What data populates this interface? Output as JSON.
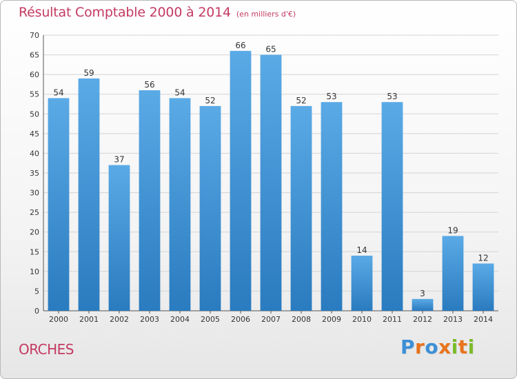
{
  "chart_data": {
    "type": "bar",
    "title": "Résultat Comptable 2000 à 2014",
    "subtitle": "(en milliers d'€)",
    "categories": [
      "2000",
      "2001",
      "2002",
      "2003",
      "2004",
      "2005",
      "2006",
      "2007",
      "2008",
      "2009",
      "2010",
      "2011",
      "2012",
      "2013",
      "2014"
    ],
    "values": [
      54,
      59,
      37,
      56,
      54,
      52,
      66,
      65,
      52,
      53,
      14,
      53,
      3,
      19,
      12
    ],
    "ylim": [
      0,
      70
    ],
    "yticks": [
      0,
      5,
      10,
      15,
      20,
      25,
      30,
      35,
      40,
      45,
      50,
      55,
      60,
      65,
      70
    ],
    "grid": true,
    "bar_color": "#3d8fd4"
  },
  "commune": "ORCHES",
  "logo": {
    "text": "Proxiti",
    "letter_colors": [
      "#3c8fd6",
      "#e8731c",
      "#3c8fd6",
      "#e8731c",
      "#7dbb2a",
      "#e8731c",
      "#7dbb2a"
    ]
  },
  "colors": {
    "title": "#c43a62",
    "grid": "#d4d4d4",
    "axis": "#555555"
  }
}
